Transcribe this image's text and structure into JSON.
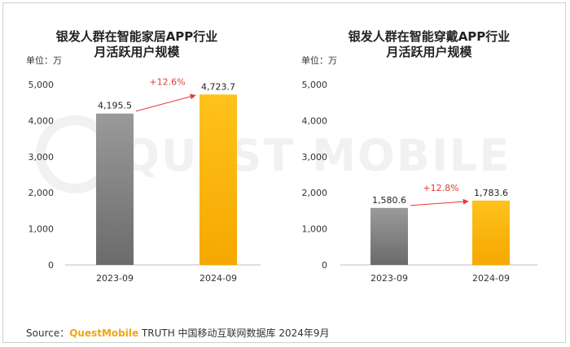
{
  "watermark": "QUEST MOBILE",
  "source": {
    "prefix": "Source：",
    "brand": "QuestMobile",
    "suffix": " TRUTH 中国移动互联网数据库 2024年9月"
  },
  "colors": {
    "bar_2023": "#7f7f7f",
    "bar_2024": "#fdb813",
    "growth": "#e53935"
  },
  "chart_data": [
    {
      "type": "bar",
      "title": [
        "银发人群在智能家居APP行业",
        "月活跃用户规模"
      ],
      "unit": "单位：万",
      "categories": [
        "2023-09",
        "2024-09"
      ],
      "values": [
        4195.5,
        4723.7
      ],
      "value_labels": [
        "4,195.5",
        "4,723.7"
      ],
      "growth": "+12.6%",
      "ylim": [
        0,
        5000
      ],
      "yticks": [
        0,
        1000,
        2000,
        3000,
        4000,
        5000
      ],
      "ytick_labels": [
        "0",
        "1,000",
        "2,000",
        "3,000",
        "4,000",
        "5,000"
      ],
      "grid": false,
      "legend": "none"
    },
    {
      "type": "bar",
      "title": [
        "银发人群在智能穿戴APP行业",
        "月活跃用户规模"
      ],
      "unit": "单位：万",
      "categories": [
        "2023-09",
        "2024-09"
      ],
      "values": [
        1580.6,
        1783.6
      ],
      "value_labels": [
        "1,580.6",
        "1,783.6"
      ],
      "growth": "+12.8%",
      "ylim": [
        0,
        5000
      ],
      "yticks": [
        0,
        1000,
        2000,
        3000,
        4000,
        5000
      ],
      "ytick_labels": [
        "0",
        "1,000",
        "2,000",
        "3,000",
        "4,000",
        "5,000"
      ],
      "grid": false,
      "legend": "none"
    }
  ]
}
